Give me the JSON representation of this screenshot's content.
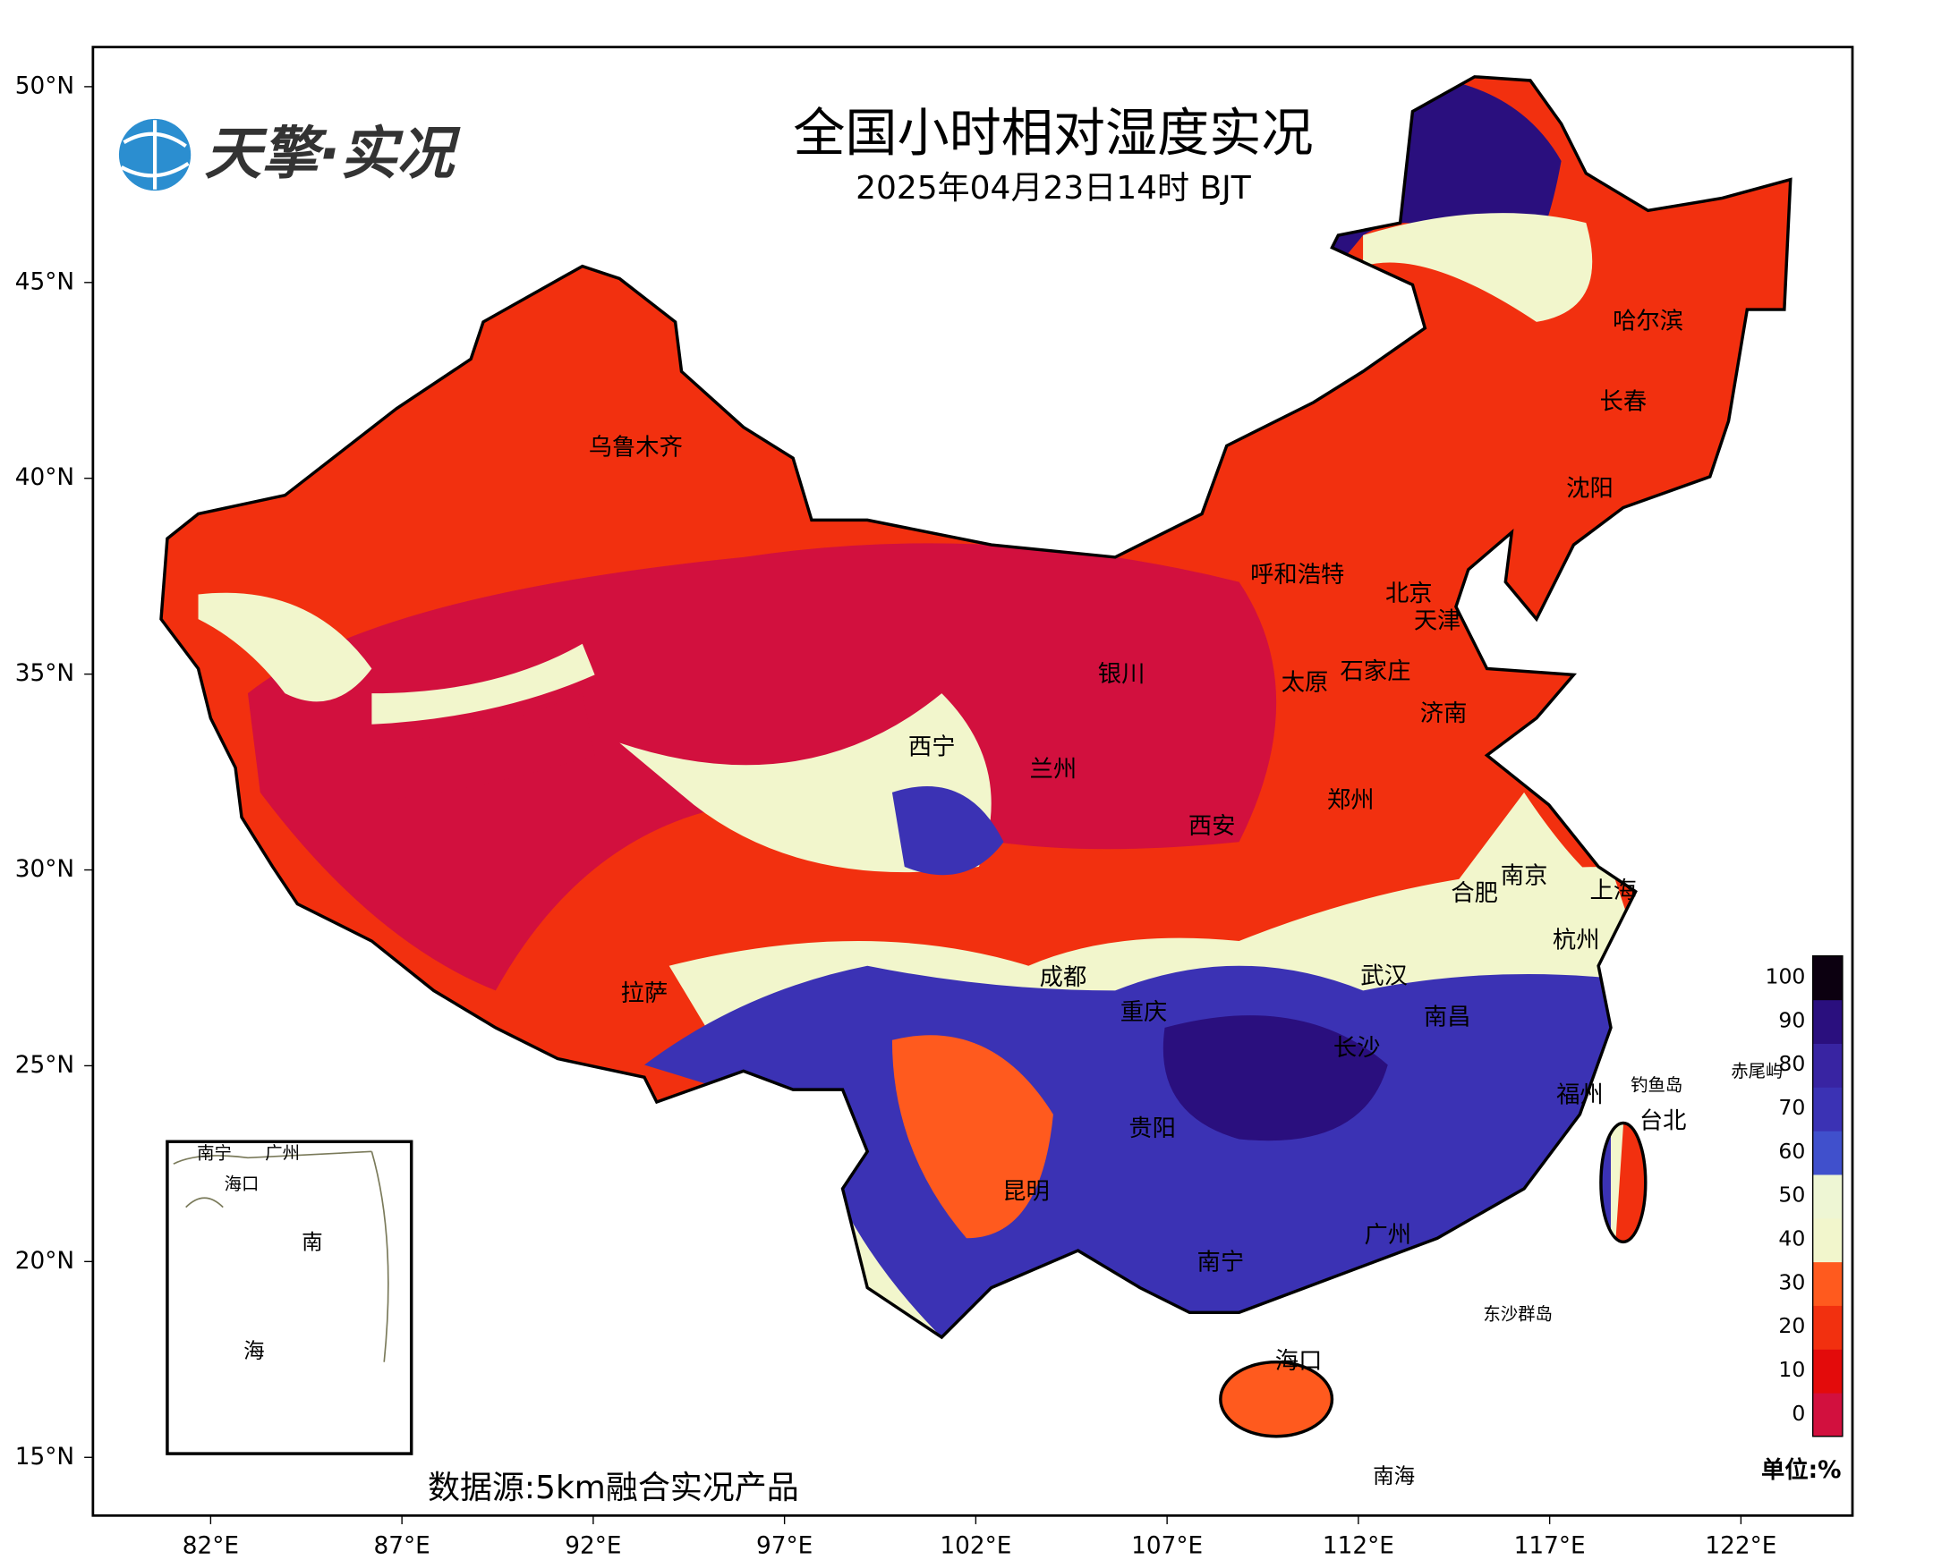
{
  "logo": "天擎·实况",
  "title": "全国小时相对湿度实况",
  "subtitle": "2025年04月23日14时 BJT",
  "lat_ticks": [
    {
      "value": 50,
      "label": "50°N"
    },
    {
      "value": 45,
      "label": "45°N"
    },
    {
      "value": 40,
      "label": "40°N"
    },
    {
      "value": 35,
      "label": "35°N"
    },
    {
      "value": 30,
      "label": "30°N"
    },
    {
      "value": 25,
      "label": "25°N"
    },
    {
      "value": 20,
      "label": "20°N"
    },
    {
      "value": 15,
      "label": "15°N"
    }
  ],
  "lon_ticks": [
    {
      "value": 82,
      "label": "82°E"
    },
    {
      "value": 87,
      "label": "87°E"
    },
    {
      "value": 92,
      "label": "92°E"
    },
    {
      "value": 97,
      "label": "97°E"
    },
    {
      "value": 102,
      "label": "102°E"
    },
    {
      "value": 107,
      "label": "107°E"
    },
    {
      "value": 112,
      "label": "112°E"
    },
    {
      "value": 117,
      "label": "117°E"
    },
    {
      "value": 122,
      "label": "122°E"
    }
  ],
  "cities": [
    "乌鲁木齐",
    "哈尔滨",
    "长春",
    "沈阳",
    "呼和浩特",
    "北京",
    "天津",
    "银川",
    "石家庄",
    "太原",
    "济南",
    "西宁",
    "兰州",
    "郑州",
    "西安",
    "南京",
    "上海",
    "合肥",
    "杭州",
    "拉萨",
    "成都",
    "武汉",
    "重庆",
    "南昌",
    "长沙",
    "福州",
    "台北",
    "贵阳",
    "昆明",
    "广州",
    "南宁",
    "海口"
  ],
  "islands": [
    "钓鱼岛",
    "赤尾屿",
    "东沙群岛",
    "南海"
  ],
  "inset_labels": [
    "南宁",
    "广州",
    "海口",
    "南",
    "海"
  ],
  "colorbar": {
    "ticks": [
      0,
      10,
      20,
      30,
      40,
      50,
      60,
      70,
      80,
      90,
      100
    ],
    "colors": [
      "#d2103e",
      "#e30b0b",
      "#f2300f",
      "#ff5a1e",
      "#f2f6cc",
      "#eef6d4",
      "#4050cc",
      "#3b32b4",
      "#3824a2",
      "#2a0f7e",
      "#0c0010"
    ]
  },
  "unit": "单位:%",
  "source": "数据源:5km融合实况产品"
}
